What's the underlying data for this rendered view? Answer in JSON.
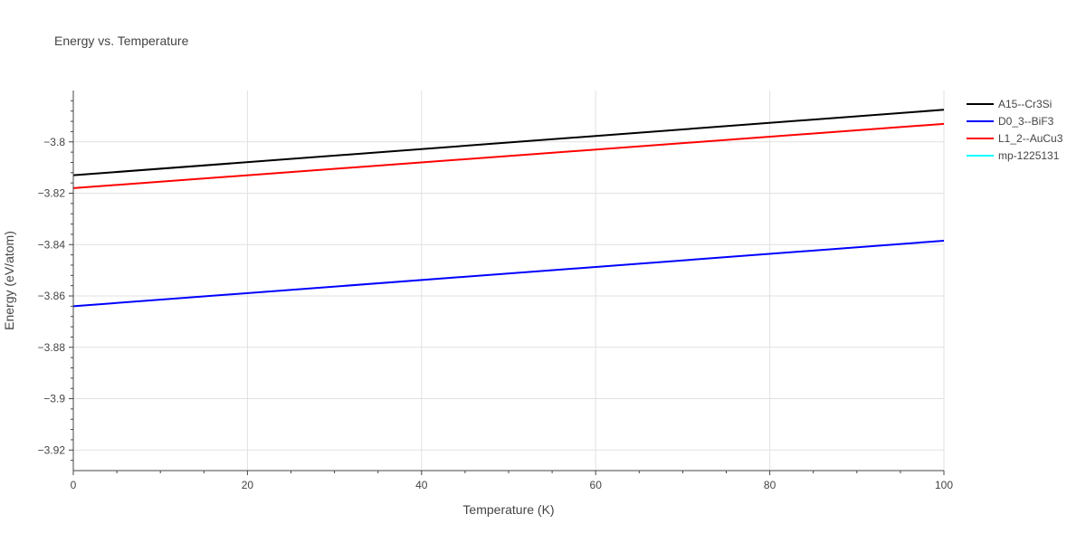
{
  "chart_data": {
    "type": "line",
    "title": "Energy vs. Temperature",
    "xlabel": "Temperature (K)",
    "ylabel": "Energy (eV/atom)",
    "xlim": [
      0,
      100
    ],
    "ylim": [
      -3.928,
      -3.78
    ],
    "x_ticks": [
      0,
      20,
      40,
      60,
      80,
      100
    ],
    "x_tick_labels": [
      "0",
      "20",
      "40",
      "60",
      "80",
      "100"
    ],
    "y_ticks": [
      -3.8,
      -3.82,
      -3.84,
      -3.86,
      -3.88,
      -3.9,
      -3.92
    ],
    "y_tick_labels": [
      "−3.8",
      "−3.82",
      "−3.84",
      "−3.86",
      "−3.88",
      "−3.9",
      "−3.92"
    ],
    "grid": true,
    "legend_position": "top-right",
    "series": [
      {
        "name": "A15--Cr3Si",
        "color": "#000000",
        "x": [
          0,
          100
        ],
        "y": [
          -3.813,
          -3.7875
        ]
      },
      {
        "name": "D0_3--BiF3",
        "color": "#0000ff",
        "x": [
          0,
          100
        ],
        "y": [
          -3.864,
          -3.8385
        ]
      },
      {
        "name": "L1_2--AuCu3",
        "color": "#ff0000",
        "x": [
          0,
          100
        ],
        "y": [
          -3.818,
          -3.793
        ]
      },
      {
        "name": "mp-1225131",
        "color": "#00ffff",
        "x": [],
        "y": []
      }
    ]
  }
}
